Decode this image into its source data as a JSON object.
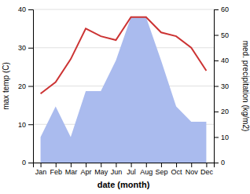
{
  "chart_data": {
    "type": "line",
    "categories": [
      "Jan",
      "Feb",
      "Mar",
      "Apr",
      "May",
      "Jun",
      "Jul",
      "Aug",
      "Sep",
      "Oct",
      "Nov",
      "Dec"
    ],
    "series": [
      {
        "type": "area",
        "color": "#aabbee",
        "axis": "y2",
        "values": [
          10,
          22,
          10,
          28,
          28,
          40,
          57,
          57,
          40,
          22,
          16,
          16
        ]
      },
      {
        "type": "line",
        "color": "#cc3333",
        "values": [
          18,
          21,
          27,
          35,
          33,
          32,
          38,
          38,
          34,
          33,
          30,
          24
        ]
      }
    ],
    "xlabel": "date (month)",
    "ylabel": "max temp (C)",
    "y2label": "med. precipitation (kg/m2)",
    "ylim": [
      0,
      40
    ],
    "yticks": [
      0,
      10,
      20,
      30,
      40
    ],
    "y2lim": [
      0,
      60
    ],
    "y2ticks": [
      0,
      10,
      20,
      30,
      40,
      50,
      60
    ],
    "grid": true
  }
}
